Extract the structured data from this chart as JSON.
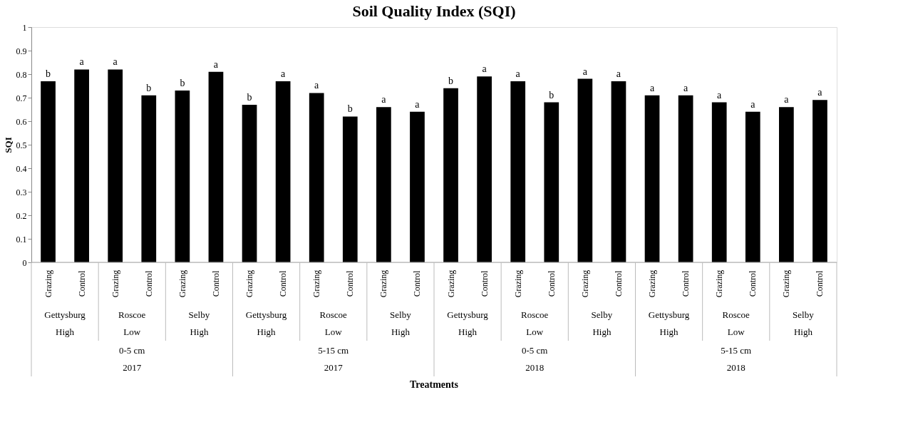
{
  "chart_data": {
    "type": "bar",
    "title": "Soil Quality Index (SQI)",
    "ylabel": "SQI",
    "color": "#000000",
    "categories": [
      "Grazing",
      "Control",
      "Grazing",
      "Control",
      "Grazing",
      "Control",
      "Grazing",
      "Control",
      "Grazing",
      "Control",
      "Grazing",
      "Control",
      "Grazing",
      "Control",
      "Grazing",
      "Control",
      "Grazing",
      "Control",
      "Grazing",
      "Control",
      "Grazing",
      "Control",
      "Grazing",
      "Control"
    ],
    "values": [
      0.77,
      0.82,
      0.82,
      0.71,
      0.73,
      0.81,
      0.67,
      0.77,
      0.72,
      0.62,
      0.66,
      0.64,
      0.74,
      0.79,
      0.77,
      0.68,
      0.78,
      0.77,
      0.71,
      0.71,
      0.68,
      0.64,
      0.66,
      0.69
    ],
    "value_labels": [
      "b",
      "a",
      "a",
      "b",
      "b",
      "a",
      "b",
      "a",
      "a",
      "b",
      "a",
      "a",
      "b",
      "a",
      "a",
      "b",
      "a",
      "a",
      "a",
      "a",
      "a",
      "a",
      "a",
      "a"
    ],
    "annotations": [
      "Gettysburg",
      "Roscoe",
      "Selby",
      "Gettysburg",
      "Roscoe",
      "Selby",
      "Gettysburg",
      "Roscoe",
      "Selby",
      "Gettysburg",
      "Roscoe",
      "Selby",
      "High",
      "Low",
      "High",
      "High",
      "Low",
      "High",
      "High",
      "Low",
      "High",
      "High",
      "Low",
      "High",
      "0-5 cm",
      "5-15 cm",
      "0-5 cm",
      "5-15 cm",
      "2017",
      "2017",
      "2018",
      "2018",
      "Treatments"
    ],
    "ylim": [
      0,
      1
    ],
    "yticks": [
      0,
      0.1,
      0.2,
      0.3,
      0.4,
      0.5,
      0.6,
      0.7,
      0.8,
      0.9,
      1
    ]
  }
}
